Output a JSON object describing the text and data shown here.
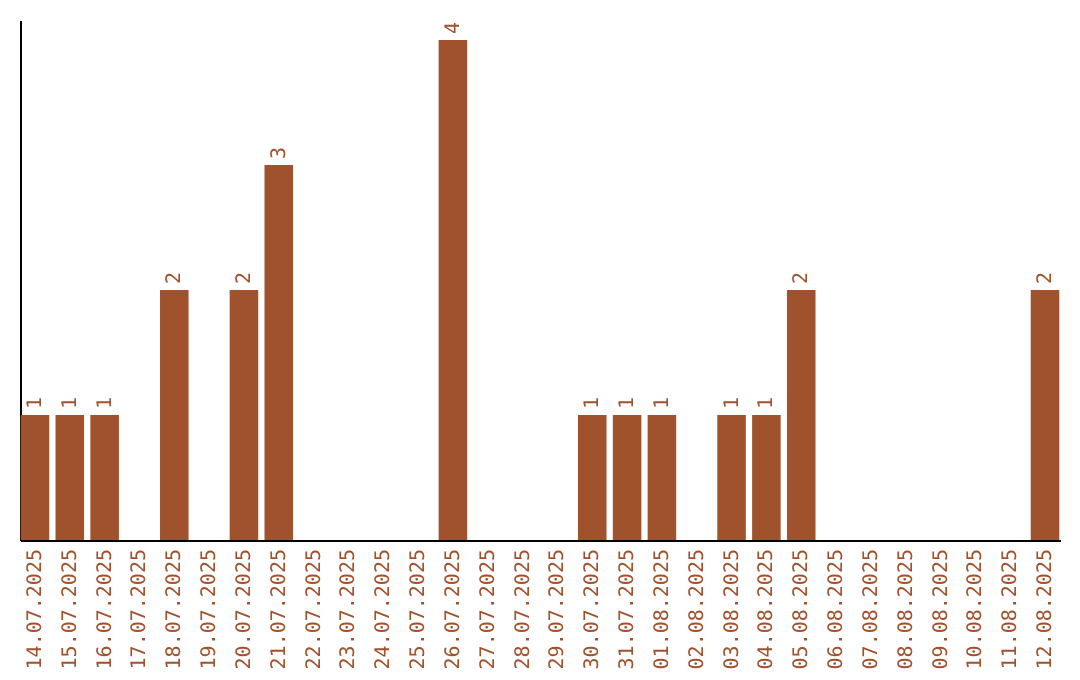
{
  "chart_data": {
    "type": "bar",
    "categories": [
      "14.07.2025",
      "15.07.2025",
      "16.07.2025",
      "17.07.2025",
      "18.07.2025",
      "19.07.2025",
      "20.07.2025",
      "21.07.2025",
      "22.07.2025",
      "23.07.2025",
      "24.07.2025",
      "25.07.2025",
      "26.07.2025",
      "27.07.2025",
      "28.07.2025",
      "29.07.2025",
      "30.07.2025",
      "31.07.2025",
      "01.08.2025",
      "02.08.2025",
      "03.08.2025",
      "04.08.2025",
      "05.08.2025",
      "06.08.2025",
      "07.08.2025",
      "08.08.2025",
      "09.08.2025",
      "10.08.2025",
      "11.08.2025",
      "12.08.2025"
    ],
    "values": [
      1,
      1,
      1,
      0,
      2,
      0,
      2,
      3,
      0,
      0,
      0,
      0,
      4,
      0,
      0,
      0,
      1,
      1,
      1,
      0,
      1,
      1,
      2,
      0,
      0,
      0,
      0,
      0,
      0,
      2
    ],
    "value_labels": [
      "1",
      "1",
      "1",
      null,
      "2",
      null,
      "2",
      "3",
      null,
      null,
      null,
      null,
      "4",
      null,
      null,
      null,
      "1",
      "1",
      "1",
      null,
      "1",
      "1",
      "2",
      null,
      null,
      null,
      null,
      null,
      null,
      "2"
    ],
    "color": "#a0522d",
    "tick_labels": "x"
  }
}
